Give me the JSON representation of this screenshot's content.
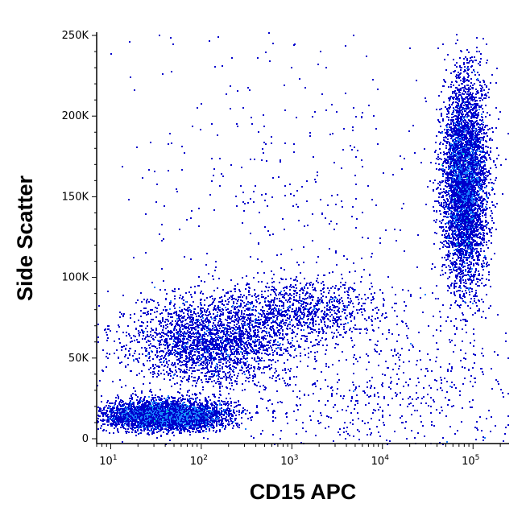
{
  "chart_data": {
    "type": "scatter",
    "subtype": "flow-cytometry density dot plot",
    "xlabel": "CD15 APC",
    "ylabel": "Side Scatter",
    "x_scale": "log",
    "xlim": [
      7,
      250000
    ],
    "ylim": [
      -3000,
      252000
    ],
    "x_ticks": [
      {
        "value": 10,
        "base": "10",
        "exp": "1"
      },
      {
        "value": 100,
        "base": "10",
        "exp": "2"
      },
      {
        "value": 1000,
        "base": "10",
        "exp": "3"
      },
      {
        "value": 10000,
        "base": "10",
        "exp": "4"
      },
      {
        "value": 100000,
        "base": "10",
        "exp": "5"
      }
    ],
    "y_ticks": [
      {
        "value": 0,
        "label": "0"
      },
      {
        "value": 50000,
        "label": "50K"
      },
      {
        "value": 100000,
        "label": "100K"
      },
      {
        "value": 150000,
        "label": "150K"
      },
      {
        "value": 200000,
        "label": "200K"
      },
      {
        "value": 250000,
        "label": "250K"
      }
    ],
    "grid": false,
    "legend": "none",
    "colormap": [
      "#0000cc",
      "#1a7fff",
      "#00d4c8",
      "#33dd55",
      "#ccee22",
      "#ff9900",
      "#ff2200"
    ],
    "populations": [
      {
        "x_center": 40,
        "x_spread_log10": 0.33,
        "y_center": 15000,
        "y_spread": 4500,
        "weight": 0.3
      },
      {
        "x_center": 120,
        "x_spread_log10": 0.45,
        "y_center": 60000,
        "y_spread": 14000,
        "weight": 0.17
      },
      {
        "x_center": 1200,
        "x_spread_log10": 0.45,
        "y_center": 80000,
        "y_spread": 10000,
        "weight": 0.07
      },
      {
        "x_center": 80000,
        "x_spread_log10": 0.12,
        "y_center": 160000,
        "y_spread": 32000,
        "weight": 0.33
      },
      {
        "x_center": 8000,
        "x_spread_log10": 1.0,
        "y_center": 30000,
        "y_spread": 30000,
        "weight": 0.05
      },
      {
        "x_center": 1000,
        "x_spread_log10": 1.2,
        "y_center": 150000,
        "y_spread": 60000,
        "weight": 0.03
      }
    ]
  }
}
